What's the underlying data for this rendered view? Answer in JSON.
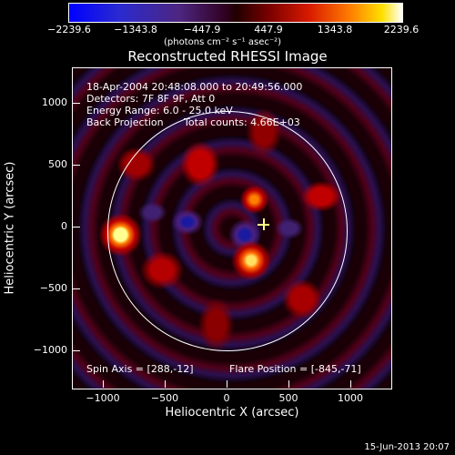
{
  "colorbar": {
    "ticks": [
      "−2239.6",
      "−1343.8",
      "−447.9",
      "447.9",
      "1343.8",
      "2239.6"
    ],
    "units": "(photons cm⁻² s⁻¹ asec⁻²)"
  },
  "title": "Reconstructed RHESSI Image",
  "info": {
    "time": "18-Apr-2004 20:48:08.000 to 20:49:56.000",
    "detectors": "Detectors: 7F 8F 9F, Att 0",
    "energy": "Energy Range: 6.0 - 25.0 keV",
    "method": "Back Projection",
    "counts": "Total counts: 4.66E+03"
  },
  "footer_left": "Spin Axis = [288,-12]",
  "footer_right": "Flare Position = [-845,-71]",
  "axes": {
    "xlabel": "Heliocentric X (arcsec)",
    "ylabel": "Heliocentric Y (arcsec)",
    "xticks": [
      "−1000",
      "−500",
      "0",
      "500",
      "1000"
    ],
    "yticks": [
      "1000",
      "500",
      "0",
      "−500",
      "−1000"
    ]
  },
  "datestamp": "15-Jun-2013 20:07"
}
